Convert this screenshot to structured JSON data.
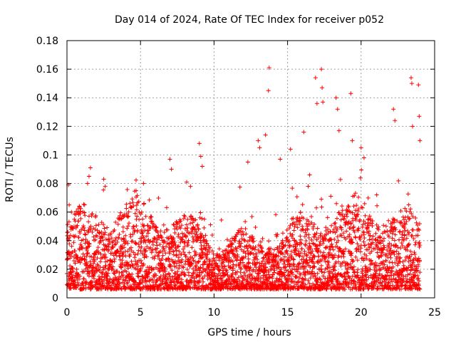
{
  "chart_data": {
    "type": "scatter",
    "title": "Day 014 of 2024, Rate Of TEC Index for receiver p052",
    "xlabel": "GPS time / hours",
    "ylabel": "ROTI / TECUs",
    "xlim": [
      0,
      25
    ],
    "ylim": [
      0,
      0.18
    ],
    "xticks": [
      0,
      5,
      10,
      15,
      20,
      25
    ],
    "xtick_labels": [
      "0",
      "5",
      "10",
      "15",
      "20",
      "25"
    ],
    "yticks": [
      0,
      0.02,
      0.04,
      0.06,
      0.08,
      0.1,
      0.12,
      0.14,
      0.16,
      0.18
    ],
    "ytick_labels": [
      "0",
      "0.02",
      "0.04",
      "0.06",
      "0.08",
      "0.1",
      "0.12",
      "0.14",
      "0.16",
      "0.18"
    ],
    "grid": true,
    "marker": "+",
    "marker_color": "#ff0000",
    "series": [
      {
        "name": "ROTI",
        "x": [
          0.1,
          0.15,
          0.3,
          0.5,
          1.4,
          1.5,
          1.6,
          2.5,
          2.6,
          4.7,
          5.2,
          7.0,
          7.1,
          8.4,
          9.0,
          9.1,
          9.2,
          12.3,
          13.0,
          13.1,
          13.5,
          13.7,
          13.75,
          14.5,
          15.2,
          16.1,
          16.5,
          16.9,
          17.0,
          17.3,
          17.35,
          17.4,
          18.3,
          18.4,
          18.5,
          19.3,
          19.4,
          20.0,
          20.2,
          22.2,
          22.3,
          23.4,
          23.45,
          23.5,
          23.9,
          23.95,
          24.0
        ],
        "y": [
          0.079,
          0.065,
          0.06,
          0.055,
          0.08,
          0.085,
          0.091,
          0.083,
          0.078,
          0.075,
          0.08,
          0.097,
          0.09,
          0.078,
          0.108,
          0.099,
          0.092,
          0.095,
          0.11,
          0.105,
          0.114,
          0.145,
          0.161,
          0.097,
          0.104,
          0.116,
          0.086,
          0.154,
          0.136,
          0.16,
          0.147,
          0.137,
          0.14,
          0.132,
          0.117,
          0.143,
          0.11,
          0.105,
          0.098,
          0.132,
          0.124,
          0.154,
          0.15,
          0.12,
          0.149,
          0.127,
          0.11
        ],
        "bulk_distribution": "dense cloud of points every ~0.02 h across 0-24 h, mostly between 0.005 and 0.06 TECU/min, with the densest band near 0.01-0.03"
      }
    ]
  }
}
